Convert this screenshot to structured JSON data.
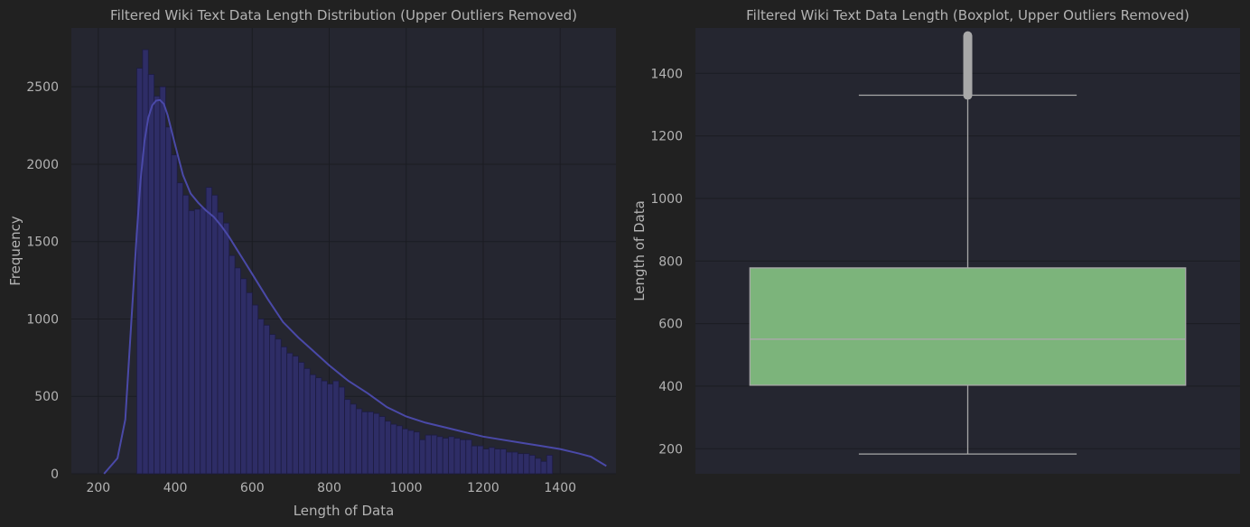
{
  "colors": {
    "figure_bg": "#212121",
    "axes_bg": "#252630",
    "grid": "#1b1c22",
    "hist_fill": "#2e2d66",
    "hist_edge": "#1d1c40",
    "kde_line": "#4a49a8",
    "box_fill": "#7cb47b",
    "box_edge": "#a8a8a8",
    "text": "#b3b3b3"
  },
  "chart_data": [
    {
      "type": "histogram",
      "title": "Filtered Wiki Text Data Length Distribution (Upper Outliers Removed)",
      "xlabel": "Length of Data",
      "ylabel": "Frequency",
      "xlim": [
        130,
        1545
      ],
      "ylim": [
        0,
        2880
      ],
      "xticks": [
        200,
        400,
        600,
        800,
        1000,
        1200,
        1400
      ],
      "yticks": [
        0,
        500,
        1000,
        1500,
        2000,
        2500
      ],
      "grid": true,
      "bins": {
        "start": 300,
        "width": 15,
        "counts": [
          2620,
          2740,
          2580,
          2440,
          2500,
          2240,
          2060,
          1880,
          1800,
          1700,
          1710,
          1720,
          1850,
          1800,
          1690,
          1620,
          1410,
          1330,
          1260,
          1170,
          1090,
          1000,
          960,
          900,
          870,
          820,
          780,
          760,
          720,
          680,
          640,
          620,
          600,
          580,
          600,
          560,
          480,
          450,
          420,
          400,
          400,
          390,
          370,
          340,
          320,
          310,
          290,
          280,
          270,
          220,
          250,
          250,
          240,
          230,
          240,
          230,
          220,
          220,
          180,
          180,
          160,
          170,
          160,
          160,
          140,
          140,
          130,
          130,
          120,
          100,
          80,
          120
        ]
      },
      "kde": {
        "x": [
          215,
          250,
          270,
          290,
          300,
          310,
          320,
          330,
          340,
          350,
          360,
          370,
          380,
          400,
          420,
          440,
          460,
          480,
          500,
          520,
          540,
          560,
          580,
          600,
          640,
          680,
          720,
          760,
          800,
          850,
          900,
          950,
          1000,
          1050,
          1100,
          1150,
          1200,
          1250,
          1300,
          1350,
          1400,
          1450,
          1480,
          1520
        ],
        "y": [
          0,
          100,
          350,
          1150,
          1550,
          1900,
          2150,
          2300,
          2380,
          2410,
          2415,
          2390,
          2320,
          2120,
          1930,
          1810,
          1750,
          1700,
          1660,
          1600,
          1530,
          1450,
          1370,
          1290,
          1130,
          980,
          880,
          790,
          700,
          600,
          520,
          430,
          370,
          330,
          300,
          270,
          240,
          220,
          200,
          180,
          160,
          130,
          110,
          50
        ]
      }
    },
    {
      "type": "boxplot",
      "title": "Filtered Wiki Text Data Length (Boxplot, Upper Outliers Removed)",
      "ylabel": "Length of Data",
      "ylim": [
        120,
        1545
      ],
      "yticks": [
        200,
        400,
        600,
        800,
        1000,
        1200,
        1400
      ],
      "grid": true,
      "box": {
        "whisker_low": 183,
        "q1": 403,
        "median": 550,
        "q3": 778,
        "whisker_high": 1330,
        "outlier_min": 1330,
        "outlier_max": 1520
      }
    }
  ]
}
